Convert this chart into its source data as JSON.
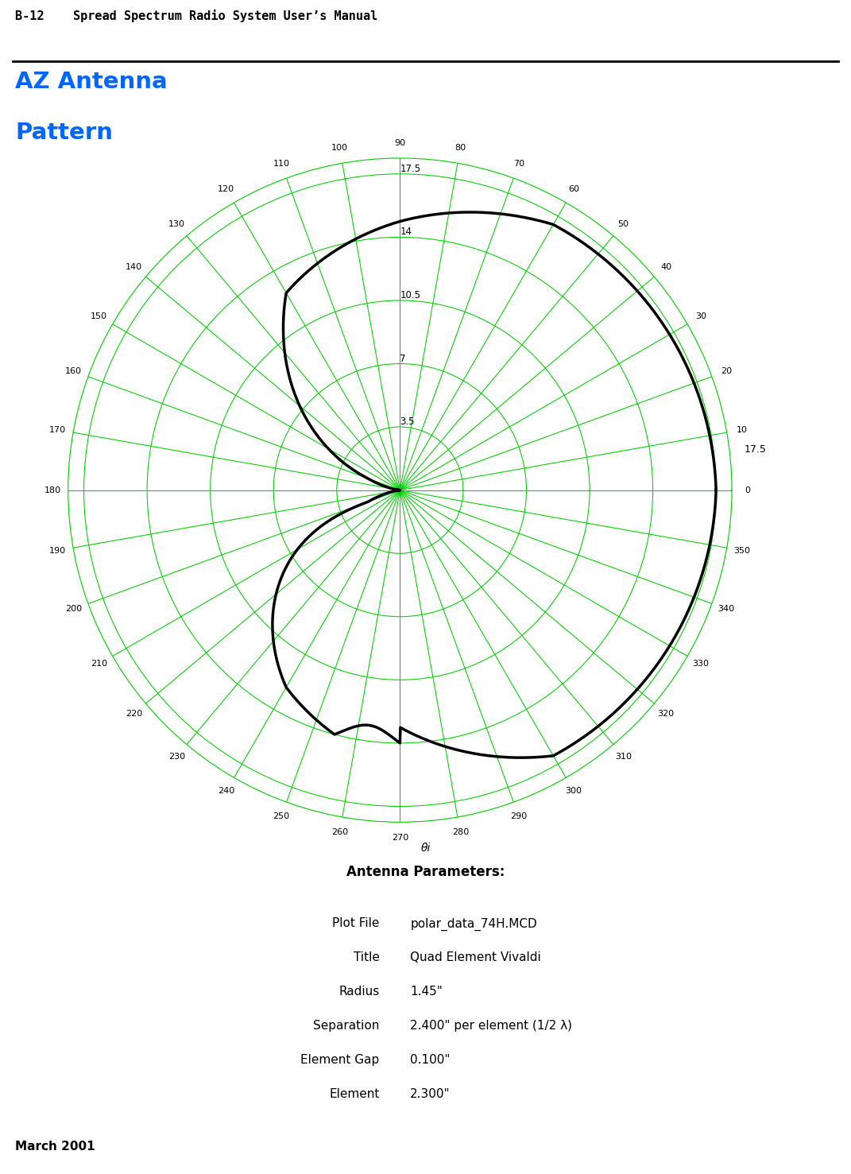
{
  "header": "B-12    Spread Spectrum Radio System User’s Manual",
  "title_line1": "AZ Antenna",
  "title_line2": "Pattern",
  "title_color": "#0066ff",
  "radial_max": 17.5,
  "radial_ticks": [
    3.5,
    7.0,
    10.5,
    14.0,
    17.5
  ],
  "radial_tick_labels": [
    "3.5",
    "7",
    "10.5",
    "14",
    "17.5"
  ],
  "grid_color": "#00cc00",
  "pattern_color": "#000000",
  "background_color": "#ffffff",
  "theta_label": "θi",
  "right_label": "17.5",
  "antenna_params_title": "Antenna Parameters:",
  "params": [
    [
      "Plot File",
      "polar_data_74H.MCD"
    ],
    [
      "Title",
      "Quad Element Vivaldi"
    ],
    [
      "Radius",
      "1.45\""
    ],
    [
      "Separation",
      "2.400\" per element (1/2 λ)"
    ],
    [
      "Element Gap",
      "0.100\""
    ],
    [
      "Element",
      "2.300\""
    ]
  ],
  "footer": "March 2001",
  "angular_ticks": [
    0,
    10,
    20,
    30,
    40,
    50,
    60,
    70,
    80,
    90,
    100,
    110,
    120,
    130,
    140,
    150,
    160,
    170,
    180,
    190,
    200,
    210,
    220,
    230,
    240,
    250,
    260,
    270,
    280,
    290,
    300,
    310,
    320,
    330,
    340,
    350
  ]
}
